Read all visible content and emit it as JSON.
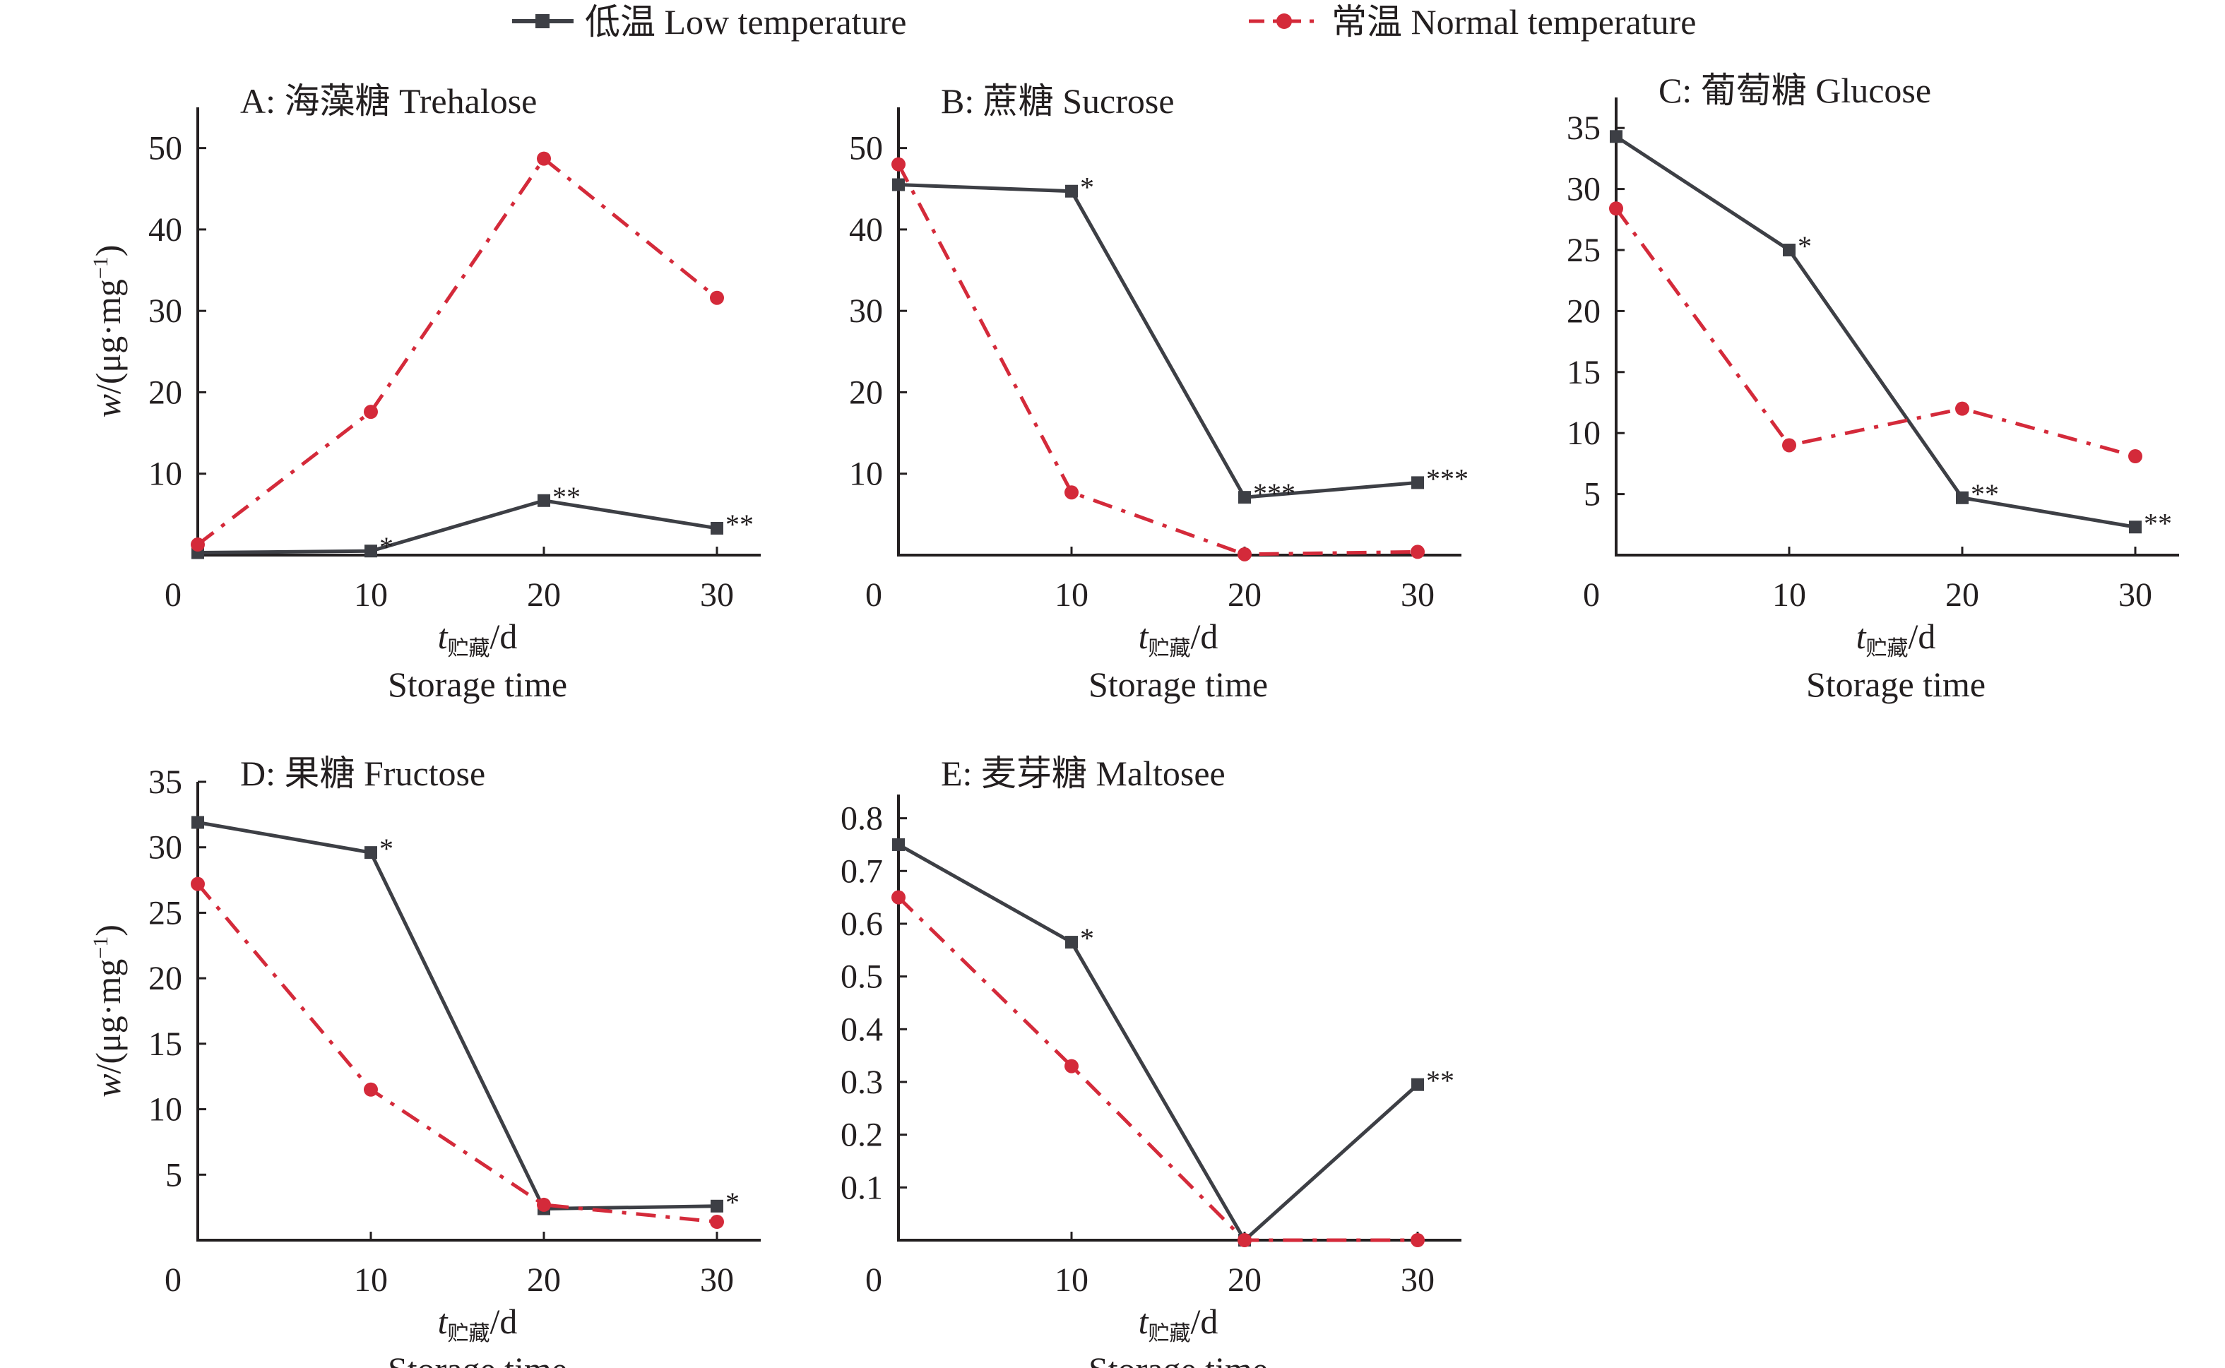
{
  "legend": {
    "low": {
      "label": "低温 Low temperature",
      "color": "#3d3f45",
      "icon": "square-marker-solid-line"
    },
    "normal": {
      "label": "常温 Normal temperature",
      "color": "#d42a3a",
      "icon": "circle-marker-dashdot-line"
    }
  },
  "axis_text": {
    "ylabel_var": "w",
    "ylabel_unit": "/(μg·mg",
    "ylabel_sup": "−1",
    "ylabel_close": ")",
    "xlabel_var": "t",
    "xlabel_sub": "贮藏",
    "xlabel_unit": "/d",
    "xlabel_en": "Storage time"
  },
  "chart_data": [
    {
      "id": "A",
      "type": "line",
      "title": "A: 海藻糖 Trehalose",
      "x": [
        0,
        10,
        20,
        30
      ],
      "xticks": [
        "0",
        "10",
        "20",
        "30"
      ],
      "ylim": [
        0,
        55
      ],
      "yticks": [
        10,
        20,
        30,
        40,
        50
      ],
      "ytick_labels": [
        "10",
        "20",
        "30",
        "40",
        "50"
      ],
      "show_ylabel": true,
      "series": [
        {
          "name": "低温 Low temperature",
          "values": [
            0.3,
            0.5,
            6.7,
            3.3
          ],
          "annotations": [
            "",
            "*",
            "**",
            "**"
          ]
        },
        {
          "name": "常温 Normal temperature",
          "values": [
            1.3,
            17.6,
            48.7,
            31.6
          ],
          "annotations": [
            "",
            "",
            "",
            ""
          ]
        }
      ]
    },
    {
      "id": "B",
      "type": "line",
      "title": "B: 蔗糖 Sucrose",
      "x": [
        0,
        10,
        20,
        30
      ],
      "xticks": [
        "0",
        "10",
        "20",
        "30"
      ],
      "ylim": [
        0,
        55
      ],
      "yticks": [
        10,
        20,
        30,
        40,
        50
      ],
      "ytick_labels": [
        "10",
        "20",
        "30",
        "40",
        "50"
      ],
      "show_ylabel": false,
      "series": [
        {
          "name": "低温 Low temperature",
          "values": [
            45.5,
            44.7,
            7.1,
            8.9
          ],
          "annotations": [
            "",
            "*",
            "***",
            "***"
          ]
        },
        {
          "name": "常温 Normal temperature",
          "values": [
            48.0,
            7.7,
            0.1,
            0.4
          ],
          "annotations": [
            "",
            "",
            "",
            ""
          ]
        }
      ]
    },
    {
      "id": "C",
      "type": "line",
      "title": "C: 葡萄糖 Glucose",
      "x": [
        0,
        10,
        20,
        30
      ],
      "xticks": [
        "0",
        "10",
        "20",
        "30"
      ],
      "ylim": [
        0,
        37.5
      ],
      "yticks": [
        5,
        10,
        15,
        20,
        25,
        30,
        35
      ],
      "ytick_labels": [
        "5",
        "10",
        "15",
        "20",
        "25",
        "30",
        "35"
      ],
      "show_ylabel": false,
      "series": [
        {
          "name": "低温 Low temperature",
          "values": [
            34.3,
            25.0,
            4.7,
            2.3
          ],
          "annotations": [
            "",
            "*",
            "**",
            "**"
          ]
        },
        {
          "name": "常温 Normal temperature",
          "values": [
            28.4,
            9.0,
            12.0,
            8.1
          ],
          "annotations": [
            "",
            "",
            "",
            ""
          ]
        }
      ]
    },
    {
      "id": "D",
      "type": "line",
      "title": "D: 果糖 Fructose",
      "x": [
        0,
        10,
        20,
        30
      ],
      "xticks": [
        "0",
        "10",
        "20",
        "30"
      ],
      "ylim": [
        0,
        35
      ],
      "yticks": [
        5,
        10,
        15,
        20,
        25,
        30,
        35
      ],
      "ytick_labels": [
        "5",
        "10",
        "15",
        "20",
        "25",
        "30",
        "35"
      ],
      "show_ylabel": true,
      "series": [
        {
          "name": "低温 Low temperature",
          "values": [
            31.9,
            29.6,
            2.4,
            2.6
          ],
          "annotations": [
            "",
            "*",
            "",
            "*"
          ]
        },
        {
          "name": "常温 Normal temperature",
          "values": [
            27.2,
            11.5,
            2.7,
            1.4
          ],
          "annotations": [
            "",
            "",
            "",
            ""
          ]
        }
      ]
    },
    {
      "id": "E",
      "type": "line",
      "title": "E: 麦芽糖 Maltosee",
      "x": [
        0,
        10,
        20,
        30
      ],
      "xticks": [
        "0",
        "10",
        "20",
        "30"
      ],
      "ylim": [
        0,
        0.845
      ],
      "yticks": [
        0.1,
        0.2,
        0.3,
        0.4,
        0.5,
        0.6,
        0.7,
        0.8
      ],
      "ytick_labels": [
        "0.1",
        "0.2",
        "0.3",
        "0.4",
        "0.5",
        "0.6",
        "0.7",
        "0.8"
      ],
      "show_ylabel": false,
      "series": [
        {
          "name": "低温 Low temperature",
          "values": [
            0.75,
            0.565,
            0.0,
            0.295
          ],
          "annotations": [
            "",
            "*",
            "",
            "**"
          ]
        },
        {
          "name": "常温 Normal temperature",
          "values": [
            0.65,
            0.33,
            0.0,
            0.0
          ],
          "annotations": [
            "",
            "",
            "",
            ""
          ]
        }
      ]
    }
  ]
}
